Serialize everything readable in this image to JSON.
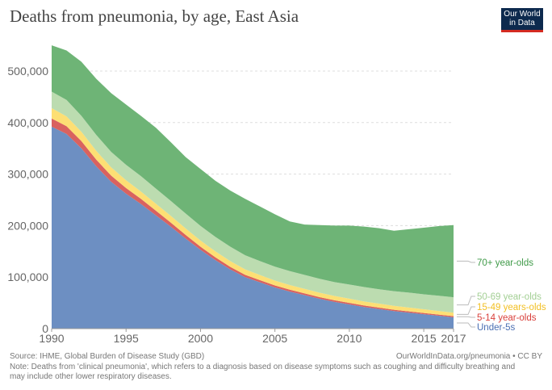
{
  "title": "Deaths from pneumonia, by age, East Asia",
  "logo": {
    "line1": "Our World",
    "line2": "in Data"
  },
  "footer": {
    "source": "Source: IHME, Global Burden of Disease Study (GBD)",
    "url": "OurWorldInData.org/pneumonia • CC BY",
    "note": "Note: Deaths from 'clinical pneumonia', which refers to a diagnosis based on disease symptoms such as coughing and difficulty breathing and may include other lower respiratory diseases."
  },
  "chart_data": {
    "type": "area",
    "stacked": true,
    "title": "Deaths from pneumonia, by age, East Asia",
    "xlim": [
      1990,
      2017
    ],
    "ylim": [
      0,
      550000
    ],
    "x_ticks": [
      1990,
      1995,
      2000,
      2005,
      2010,
      2015,
      2017
    ],
    "y_ticks": [
      0,
      100000,
      200000,
      300000,
      400000,
      500000
    ],
    "y_tick_labels": [
      "0",
      "100,000",
      "200,000",
      "300,000",
      "400,000",
      "500,000"
    ],
    "grid": "horizontal dashed",
    "legend_placement": "right (inline labels)",
    "x": [
      1990,
      1991,
      1992,
      1993,
      1994,
      1995,
      1996,
      1997,
      1998,
      1999,
      2000,
      2001,
      2002,
      2003,
      2004,
      2005,
      2006,
      2007,
      2008,
      2009,
      2010,
      2011,
      2012,
      2013,
      2014,
      2015,
      2016,
      2017
    ],
    "series": [
      {
        "name": "Under-5s",
        "color": "#6d8fc2",
        "label_color": "#4a6fb3",
        "values": [
          392000,
          378000,
          350000,
          315000,
          285000,
          262000,
          242000,
          220000,
          198000,
          175000,
          153000,
          133000,
          115000,
          100000,
          90000,
          80000,
          72000,
          65000,
          58000,
          52000,
          47000,
          42000,
          38000,
          34000,
          31000,
          28000,
          25000,
          22000
        ]
      },
      {
        "name": "5-14 year-olds",
        "color": "#d9625f",
        "label_color": "#d93f3a",
        "values": [
          16000,
          15000,
          14000,
          13000,
          12000,
          11000,
          10000,
          9000,
          8000,
          7000,
          6000,
          5500,
          5000,
          4500,
          4000,
          3800,
          3600,
          3400,
          3200,
          3000,
          2900,
          2800,
          2700,
          2600,
          2500,
          2400,
          2300,
          2200
        ]
      },
      {
        "name": "15-49 years-olds",
        "color": "#fddf74",
        "label_color": "#f2bf22",
        "values": [
          20000,
          19000,
          18000,
          17000,
          16000,
          15000,
          14000,
          13500,
          13000,
          12500,
          12000,
          11500,
          11000,
          10500,
          10000,
          9500,
          9000,
          8800,
          8600,
          8400,
          8200,
          8000,
          7800,
          7600,
          7400,
          7200,
          7000,
          6800
        ]
      },
      {
        "name": "50-69 year-olds",
        "color": "#bcdcb0",
        "label_color": "#a3cf94",
        "values": [
          32000,
          32000,
          31000,
          31000,
          30000,
          30000,
          30000,
          29500,
          29000,
          29000,
          28500,
          28000,
          28000,
          27500,
          27000,
          27000,
          27000,
          27000,
          27000,
          27000,
          27500,
          28000,
          28000,
          28500,
          29000,
          29000,
          29500,
          30000
        ]
      },
      {
        "name": "70+ year-olds",
        "color": "#6eb476",
        "label_color": "#3f9a48",
        "values": [
          90000,
          96000,
          105000,
          109000,
          114000,
          117000,
          117000,
          118000,
          114000,
          109500,
          110500,
          109000,
          109000,
          109500,
          106000,
          101700,
          96400,
          97800,
          104200,
          109600,
          114400,
          117200,
          118500,
          117300,
          123100,
          129400,
          135200,
          140000
        ]
      }
    ]
  }
}
